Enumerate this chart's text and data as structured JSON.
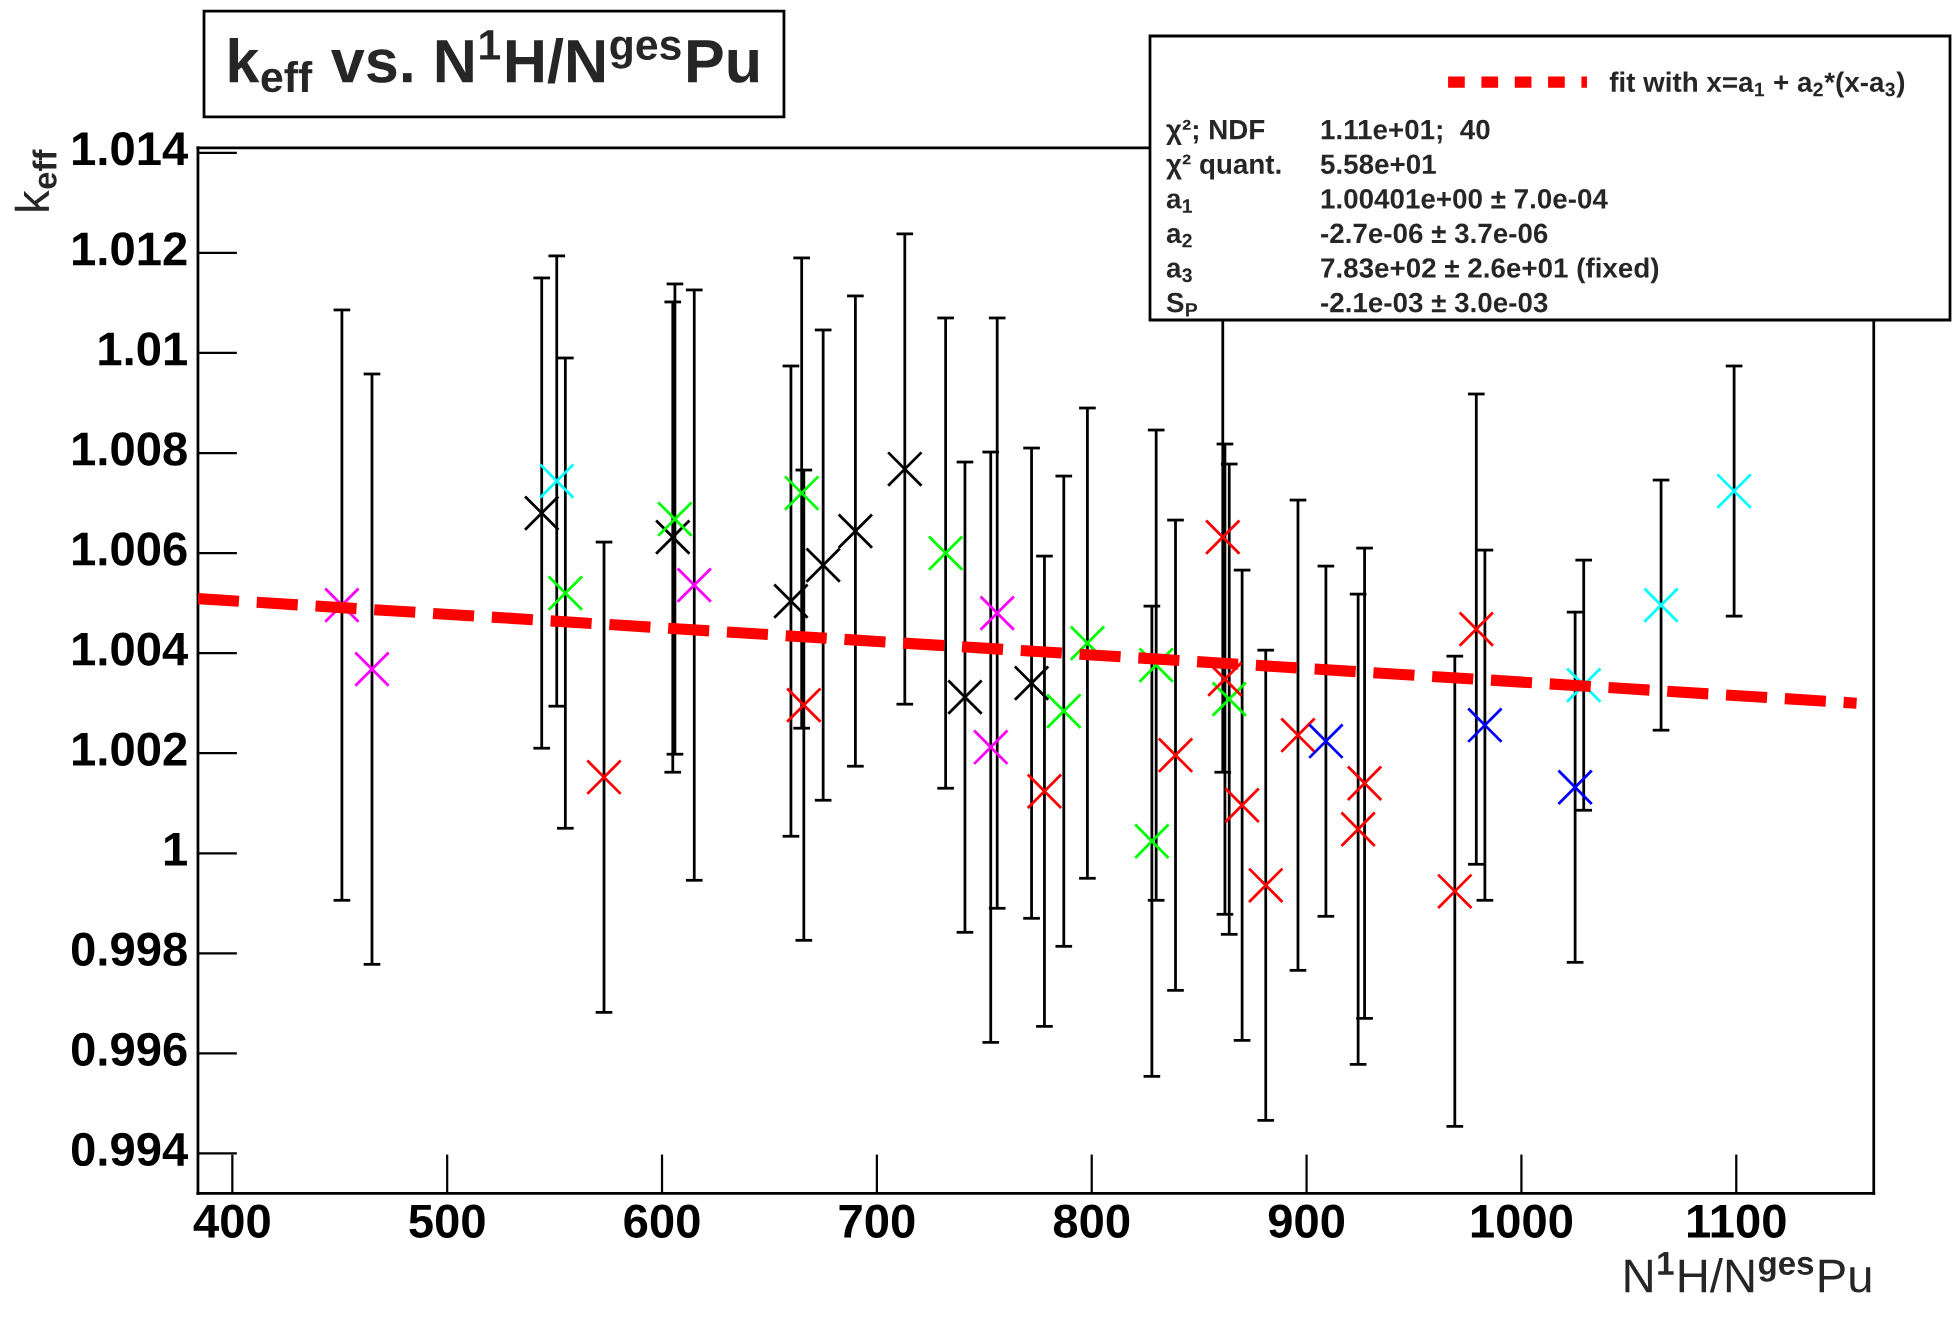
{
  "chart_data": {
    "type": "scatter",
    "title": "k$_{eff}$ vs. N$^{1}$H/N$^{ges}$Pu",
    "xlabel": "N$^{1}$H/N$^{ges}$Pu",
    "ylabel": "k$_{eff}$",
    "xlim": [
      384,
      1164
    ],
    "xticks": [
      400,
      500,
      600,
      700,
      800,
      900,
      1000,
      1100
    ],
    "ylim": [
      0.9932,
      1.0141
    ],
    "yticks": [
      0.994,
      0.996,
      0.998,
      1,
      1.002,
      1.004,
      1.006,
      1.008,
      1.01,
      1.012,
      1.014
    ],
    "grid": false,
    "marker": "cross",
    "legend": "top right",
    "series": [
      {
        "color": "#ff00ff",
        "x": [
          451,
          465,
          615,
          753,
          756
        ],
        "values": [
          1.00496,
          1.00368,
          1.00536,
          1.00212,
          1.0048
        ],
        "errors": [
          0.0059,
          0.0059,
          0.0059,
          0.0059,
          0.0059
        ]
      },
      {
        "color": "#00ffff",
        "x": [
          551,
          1029,
          1065,
          1099
        ],
        "values": [
          1.00744,
          1.00336,
          1.00496,
          1.00724
        ],
        "errors": [
          0.0045,
          0.0025,
          0.0025,
          0.0025
        ]
      },
      {
        "color": "#000000",
        "x": [
          544,
          605,
          660,
          675,
          690,
          713,
          741,
          772
        ],
        "values": [
          1.0068,
          1.00632,
          1.00504,
          1.00576,
          1.00644,
          1.00768,
          1.00312,
          1.0034
        ],
        "errors": [
          0.0047,
          0.0047,
          0.0047,
          0.0047,
          0.0047,
          0.0047,
          0.0047,
          0.0047
        ]
      },
      {
        "color": "#00ff00",
        "x": [
          555,
          606,
          665,
          732,
          787,
          798,
          828,
          830,
          864
        ],
        "values": [
          1.0052,
          1.00668,
          1.0072,
          1.006,
          1.00284,
          1.0042,
          1.00024,
          1.00376,
          1.00308
        ],
        "errors": [
          0.0047,
          0.0047,
          0.0047,
          0.0047,
          0.0047,
          0.0047,
          0.0047,
          0.0047,
          0.0047
        ]
      },
      {
        "color": "#ff0000",
        "x": [
          573,
          666,
          778,
          839,
          861,
          862,
          870,
          881,
          896,
          924,
          927,
          969,
          979
        ],
        "values": [
          1.00152,
          1.00296,
          1.00124,
          1.00196,
          1.00632,
          1.00348,
          1.00096,
          0.99936,
          1.00236,
          1.00048,
          1.0014,
          0.99924,
          1.00448
        ],
        "errors": [
          0.0047,
          0.0047,
          0.0047,
          0.0047,
          0.0047,
          0.0047,
          0.0047,
          0.0047,
          0.0047,
          0.0047,
          0.0047,
          0.0047,
          0.0047
        ]
      },
      {
        "color": "#0000ff",
        "x": [
          909,
          983,
          1025
        ],
        "values": [
          1.00224,
          1.00256,
          1.00132
        ],
        "errors": [
          0.0035,
          0.0035,
          0.0035
        ]
      },
      {
        "type": "line",
        "name": "fit with x=a$_{1}$ + a$_{2}$*(x-a$_{3}$)",
        "color": "#ff0000",
        "line_style": "dashed",
        "marker": "none",
        "x": [
          384,
          1156
        ],
        "values": [
          1.00509,
          1.003
        ]
      }
    ],
    "annotations": [
      "χ²; NDF",
      "1.11e+01;  40",
      "χ² quant.",
      "5.58e+01",
      "a$_{1}$",
      "1.00401e+00 ± 7.0e-04",
      "a$_{2}$",
      "-2.7e-06 ± 3.7e-06",
      "a$_{3}$",
      "7.83e+02 ± 2.6e+01 (fixed)",
      "S$_{P}$",
      "-2.1e-03 ± 3.0e-03"
    ]
  }
}
